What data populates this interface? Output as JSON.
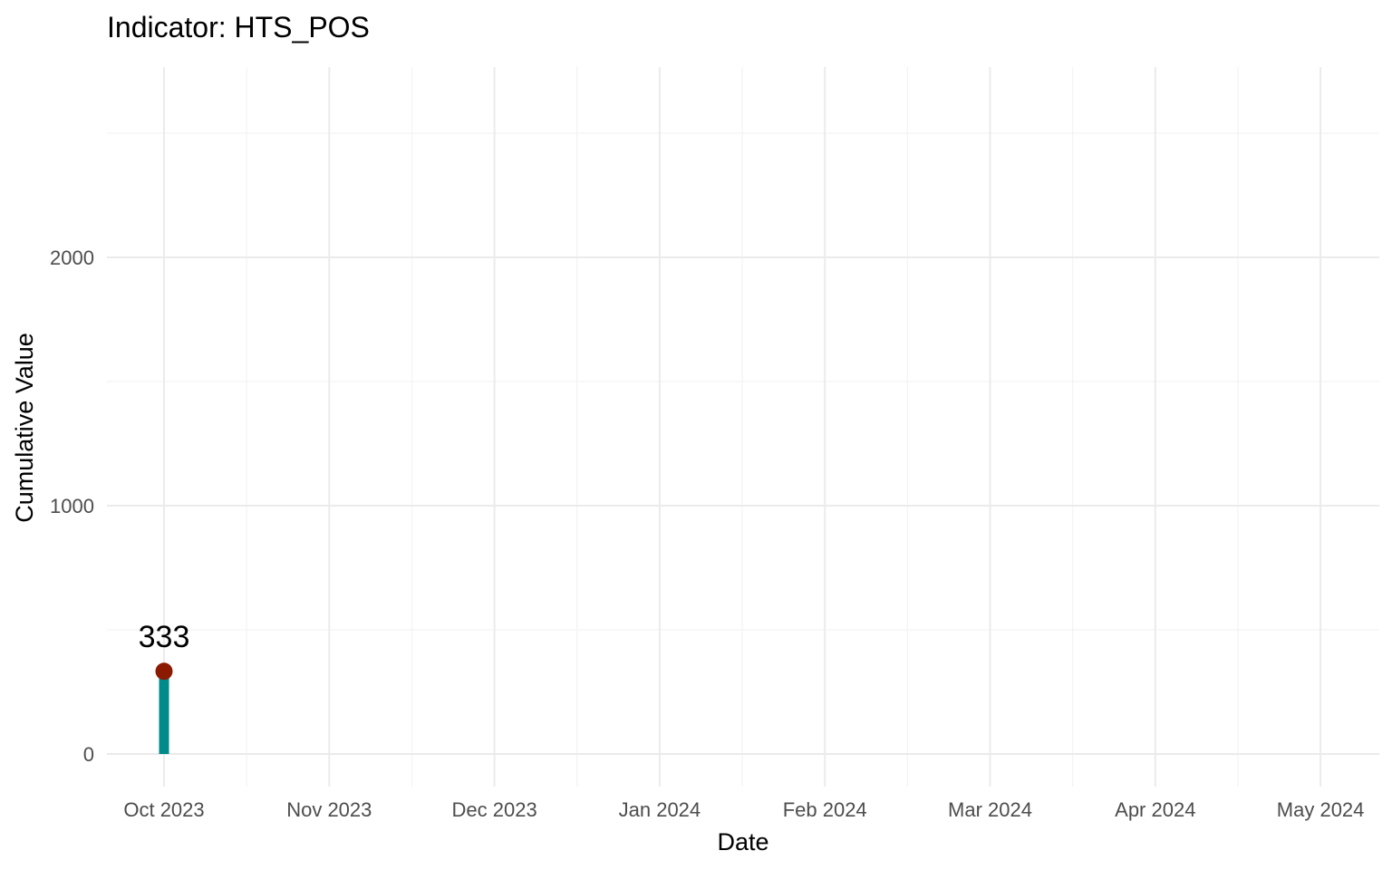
{
  "chart_data": {
    "type": "bar",
    "title": "Indicator: HTS_POS",
    "xlabel": "Date",
    "ylabel": "Cumulative Value",
    "x_ticks": [
      "Oct 2023",
      "Nov 2023",
      "Dec 2023",
      "Jan 2024",
      "Feb 2024",
      "Mar 2024",
      "Apr 2024",
      "May 2024"
    ],
    "y_ticks": [
      0,
      1000,
      2000
    ],
    "ylim": [
      -130,
      2500
    ],
    "points": [
      {
        "x": "Oct 2023",
        "y": 333,
        "label": "333"
      }
    ],
    "bar_color": "#008b8b",
    "point_color": "#8b1a00",
    "grid": true,
    "legend": "none"
  }
}
